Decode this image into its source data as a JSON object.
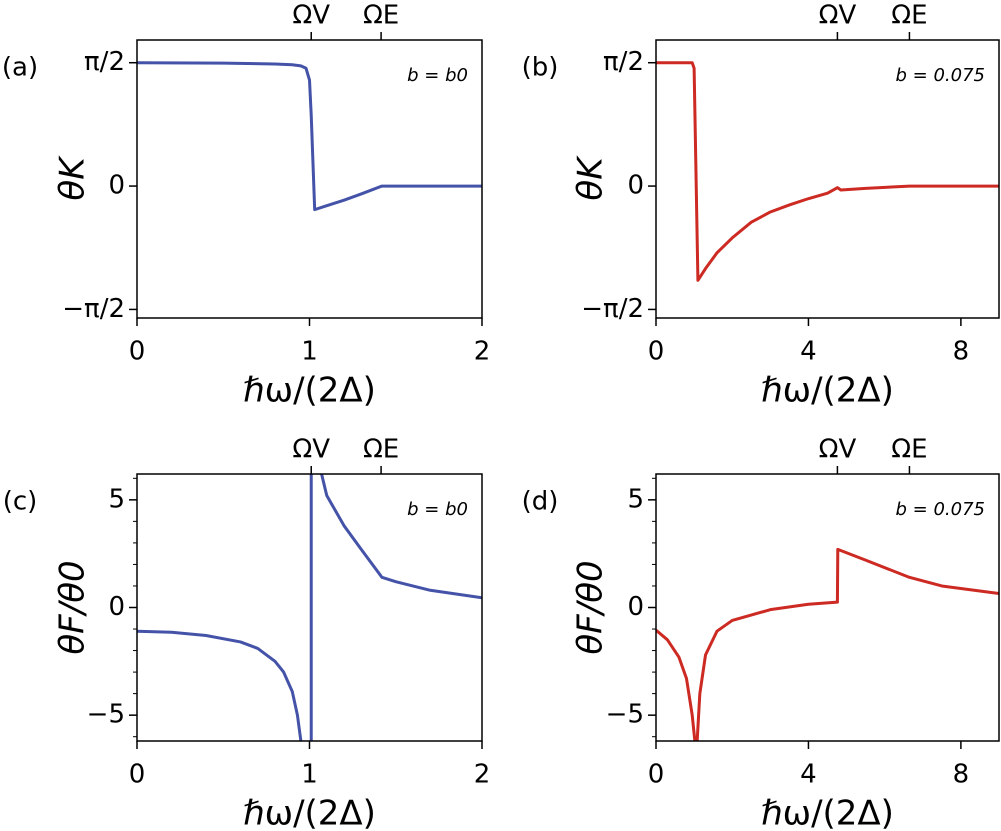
{
  "chart_data": [
    {
      "type": "line",
      "panel_label": "(a)",
      "annotation": "b = b0",
      "xlabel": "ℏω/(2Δ)",
      "ylabel": "θK",
      "xlim": [
        0,
        2
      ],
      "ylim": [
        -1.68,
        1.86
      ],
      "xticks": [
        0,
        1,
        2
      ],
      "yticks": [
        {
          "value": 1.5708,
          "label": "π/2"
        },
        0,
        {
          "value": -1.5708,
          "label": "−π/2"
        }
      ],
      "top_xticks": [
        {
          "value": 1.01,
          "label": "ΩV"
        },
        {
          "value": 1.415,
          "label": "ΩE"
        }
      ],
      "x": [
        0,
        0.5,
        0.8,
        0.9,
        0.95,
        0.98,
        1.0,
        1.01,
        1.03,
        1.1,
        1.2,
        1.3,
        1.42,
        1.6,
        2.0
      ],
      "series": [
        {
          "color": "#4453a8",
          "values": [
            1.57,
            1.565,
            1.555,
            1.545,
            1.53,
            1.5,
            1.35,
            0.9,
            -0.3,
            -0.25,
            -0.18,
            -0.1,
            0.0,
            0.0,
            0.0
          ]
        }
      ]
    },
    {
      "type": "line",
      "panel_label": "(b)",
      "annotation": "b = 0.075",
      "xlabel": "ℏω/(2Δ)",
      "ylabel": "θK",
      "xlim": [
        0,
        9
      ],
      "ylim": [
        -1.68,
        1.86
      ],
      "xticks": [
        0,
        4,
        8
      ],
      "yticks": [
        {
          "value": 1.5708,
          "label": "π/2"
        },
        0,
        {
          "value": -1.5708,
          "label": "−π/2"
        }
      ],
      "top_xticks": [
        {
          "value": 4.76,
          "label": "ΩV"
        },
        {
          "value": 6.65,
          "label": "ΩE"
        }
      ],
      "x": [
        0,
        0.95,
        1.0,
        1.1,
        1.3,
        1.6,
        2,
        2.5,
        3,
        3.5,
        4,
        4.5,
        4.76,
        4.85,
        5.5,
        6.65,
        9
      ],
      "series": [
        {
          "color": "#cc2a22",
          "values": [
            1.57,
            1.57,
            1.5,
            -1.2,
            -1.05,
            -0.85,
            -0.66,
            -0.46,
            -0.33,
            -0.24,
            -0.16,
            -0.09,
            -0.02,
            -0.05,
            -0.03,
            0,
            0
          ]
        }
      ]
    },
    {
      "type": "line",
      "panel_label": "(c)",
      "annotation": "b = b0",
      "xlabel": "ℏω/(2Δ)",
      "ylabel": "θF/θ0",
      "xlim": [
        0,
        2
      ],
      "ylim": [
        -6.2,
        6.2
      ],
      "xticks": [
        0,
        1,
        2
      ],
      "yticks": [
        {
          "value": -5,
          "label": "−5"
        },
        0,
        5
      ],
      "yminorticks": [
        -6,
        -4,
        -3,
        -2,
        -1,
        1,
        2,
        3,
        4,
        6
      ],
      "top_xticks": [
        {
          "value": 1.01,
          "label": "ΩV"
        },
        {
          "value": 1.415,
          "label": "ΩE"
        }
      ],
      "x": [
        0,
        0.2,
        0.4,
        0.6,
        0.7,
        0.8,
        0.85,
        0.9,
        0.93,
        0.95,
        0.98,
        1.01,
        1.01,
        1.04,
        1.07,
        1.1,
        1.2,
        1.3,
        1.42,
        1.5,
        1.7,
        2.0
      ],
      "series": [
        {
          "color": "#4453a8",
          "values": [
            -1.1,
            -1.15,
            -1.3,
            -1.6,
            -1.9,
            -2.5,
            -3.0,
            -3.9,
            -5.0,
            -6.2,
            null,
            -6.2,
            6.2,
            null,
            6.2,
            5.2,
            3.8,
            2.7,
            1.4,
            1.2,
            0.8,
            0.45
          ]
        }
      ]
    },
    {
      "type": "line",
      "panel_label": "(d)",
      "annotation": "b = 0.075",
      "xlabel": "ℏω/(2Δ)",
      "ylabel": "θF/θ0",
      "xlim": [
        0,
        9
      ],
      "ylim": [
        -6.2,
        6.2
      ],
      "xticks": [
        0,
        4,
        8
      ],
      "yticks": [
        {
          "value": -5,
          "label": "−5"
        },
        0,
        5
      ],
      "yminorticks": [
        -6,
        -4,
        -3,
        -2,
        -1,
        1,
        2,
        3,
        4,
        6
      ],
      "top_xticks": [
        {
          "value": 4.76,
          "label": "ΩV"
        },
        {
          "value": 6.65,
          "label": "ΩE"
        }
      ],
      "x": [
        0,
        0.3,
        0.6,
        0.8,
        0.95,
        1.02,
        1.05,
        1.08,
        1.15,
        1.3,
        1.6,
        2,
        3,
        4,
        4.76,
        4.77,
        5.5,
        6.65,
        7.5,
        9
      ],
      "series": [
        {
          "color": "#cc2a22",
          "values": [
            -1.05,
            -1.5,
            -2.3,
            -3.3,
            -5.0,
            -6.2,
            null,
            -6.2,
            -4.0,
            -2.2,
            -1.1,
            -0.6,
            -0.1,
            0.15,
            0.25,
            2.7,
            2.2,
            1.4,
            1.0,
            0.65
          ]
        }
      ]
    }
  ]
}
